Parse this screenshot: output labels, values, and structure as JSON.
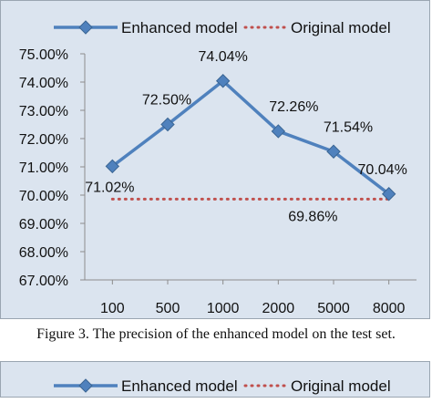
{
  "chart_data": {
    "type": "line",
    "title": "",
    "xlabel": "",
    "ylabel": "",
    "categories": [
      "100",
      "500",
      "1000",
      "2000",
      "5000",
      "8000"
    ],
    "series": [
      {
        "name": "Enhanced model",
        "values": [
          71.02,
          72.5,
          74.04,
          72.26,
          71.54,
          70.04
        ],
        "labels": [
          "71.02%",
          "72.50%",
          "74.04%",
          "72.26%",
          "71.54%",
          "70.04%"
        ],
        "color": "#4f81bd",
        "style": "solid-with-diamond-markers"
      },
      {
        "name": "Original model",
        "values": [
          69.86,
          69.86,
          69.86,
          69.86,
          69.86,
          69.86
        ],
        "labels": [
          "",
          "",
          "",
          "69.86%",
          "",
          ""
        ],
        "color": "#c0504d",
        "style": "dotted"
      }
    ],
    "yticks": [
      "67.00%",
      "68.00%",
      "69.00%",
      "70.00%",
      "71.00%",
      "72.00%",
      "73.00%",
      "74.00%",
      "75.00%"
    ],
    "ylim": [
      67,
      75
    ],
    "legend_position": "top",
    "grid": false
  },
  "caption": "Figure 3. The precision of the enhanced model on the test set.",
  "second_legend": {
    "entries": [
      "Enhanced model",
      "Original model"
    ]
  }
}
